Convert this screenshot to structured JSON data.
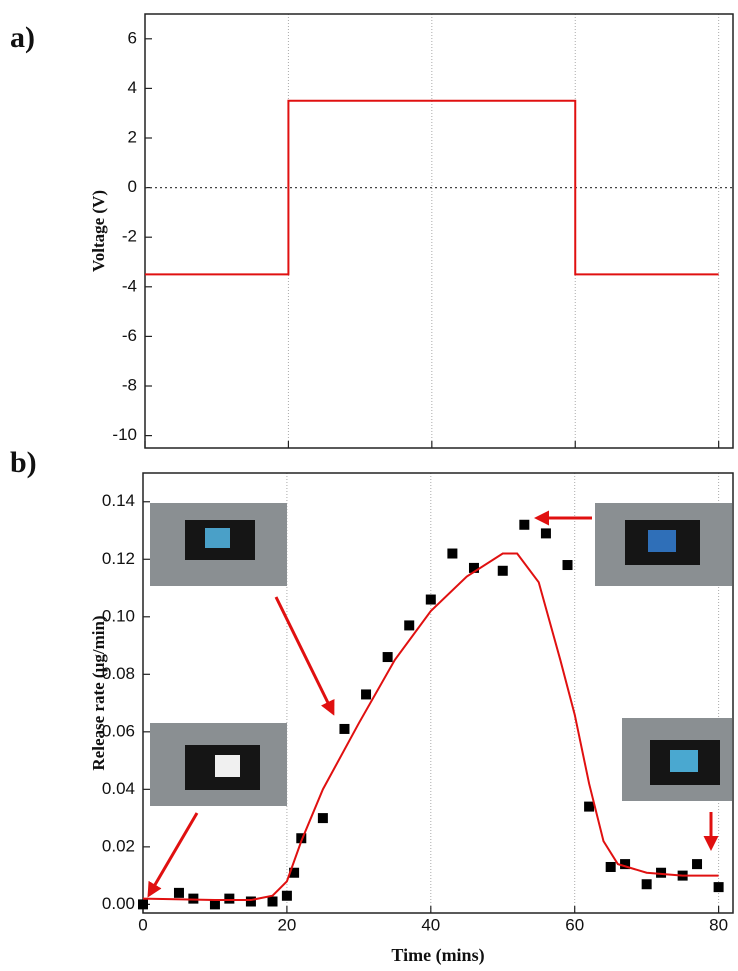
{
  "chart_data": [
    {
      "type": "line",
      "panel_label": "a)",
      "ylabel": "Voltage (V)",
      "xlim": [
        0,
        82
      ],
      "ylim": [
        -10.5,
        7
      ],
      "xticks": [
        0,
        20,
        40,
        60,
        80
      ],
      "xtick_labels": false,
      "yticks": [
        -10,
        -8,
        -6,
        -4,
        -2,
        0,
        2,
        4,
        6
      ],
      "grid": true,
      "zero_line": true,
      "series": [
        {
          "color": "#e01010",
          "x": [
            0,
            20,
            20,
            60,
            60,
            80
          ],
          "values": [
            -3.5,
            -3.5,
            3.5,
            3.5,
            -3.5,
            -3.5
          ]
        }
      ]
    },
    {
      "type": "scatter",
      "panel_label": "b)",
      "xlabel": "Time (mins)",
      "ylabel": "Release rate (µg/min)",
      "xlim": [
        0,
        82
      ],
      "ylim": [
        -0.003,
        0.15
      ],
      "xticks": [
        0,
        20,
        40,
        60,
        80
      ],
      "xtick_labels": true,
      "yticks": [
        {
          "value": 0,
          "label": "0.00"
        },
        {
          "value": 0.02,
          "label": "0.02"
        },
        {
          "value": 0.04,
          "label": "0.04"
        },
        {
          "value": 0.06,
          "label": "0.06"
        },
        {
          "value": 0.08,
          "label": "0.08"
        },
        {
          "value": 0.1,
          "label": "0.10"
        },
        {
          "value": 0.12,
          "label": "0.12"
        },
        {
          "value": 0.14,
          "label": "0.14"
        }
      ],
      "grid": true,
      "zero_line": false,
      "series": [
        {
          "type": "scatter",
          "color": "#000000",
          "x": [
            0,
            5,
            7,
            10,
            12,
            15,
            18,
            20,
            21,
            22,
            25,
            28,
            31,
            34,
            37,
            40,
            43,
            46,
            50,
            53,
            56,
            59,
            62,
            65,
            67,
            70,
            72,
            75,
            77,
            80
          ],
          "values": [
            0,
            0.004,
            0.002,
            0,
            0.002,
            0.001,
            0.001,
            0.003,
            0.011,
            0.023,
            0.03,
            0.061,
            0.073,
            0.086,
            0.097,
            0.106,
            0.122,
            0.117,
            0.116,
            0.132,
            0.129,
            0.118,
            0.034,
            0.013,
            0.014,
            0.007,
            0.011,
            0.01,
            0.014,
            0.006
          ]
        },
        {
          "type": "line",
          "color": "#e01010",
          "x": [
            0,
            10,
            15,
            18,
            20,
            22,
            25,
            30,
            35,
            40,
            45,
            50,
            52,
            55,
            58,
            60,
            62,
            64,
            66,
            70,
            75,
            80
          ],
          "values": [
            0.002,
            0.0015,
            0.0015,
            0.003,
            0.008,
            0.022,
            0.04,
            0.063,
            0.085,
            0.102,
            0.114,
            0.122,
            0.122,
            0.112,
            0.085,
            0.066,
            0.042,
            0.022,
            0.014,
            0.011,
            0.01,
            0.01
          ]
        }
      ]
    }
  ]
}
